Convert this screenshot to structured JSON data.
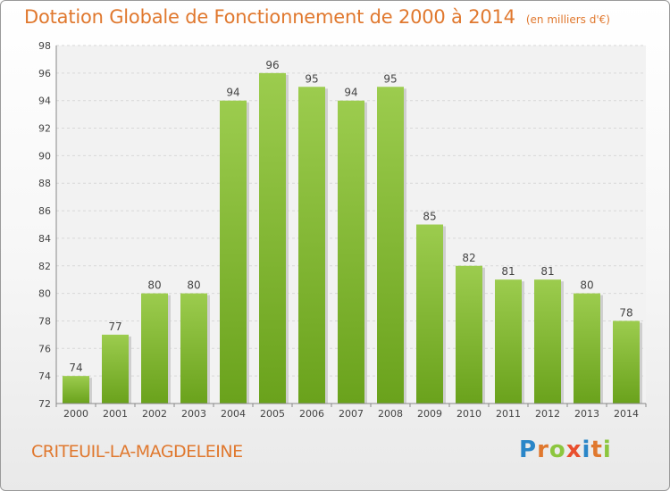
{
  "header": {
    "title": "Dotation Globale de Fonctionnement de 2000 à 2014",
    "unit": "(en milliers d'€)"
  },
  "footer": {
    "commune": "CRITEUIL-LA-MAGDELEINE",
    "logo": "Proxiti"
  },
  "colors": {
    "bar_top": "#9ccc4e",
    "bar_bottom": "#6aa21c",
    "accent": "#e0782e"
  },
  "chart_data": {
    "type": "bar",
    "title": "Dotation Globale de Fonctionnement de 2000 à 2014",
    "subtitle": "(en milliers d'€)",
    "categories": [
      "2000",
      "2001",
      "2002",
      "2003",
      "2004",
      "2005",
      "2006",
      "2007",
      "2008",
      "2009",
      "2010",
      "2011",
      "2012",
      "2013",
      "2014"
    ],
    "values": [
      74,
      77,
      80,
      80,
      94,
      96,
      95,
      94,
      95,
      85,
      82,
      81,
      81,
      80,
      78
    ],
    "ylim": [
      72,
      98
    ],
    "yticks": [
      72,
      74,
      76,
      78,
      80,
      82,
      84,
      86,
      88,
      90,
      92,
      94,
      96,
      98
    ],
    "grid": true,
    "data_labels": true
  }
}
